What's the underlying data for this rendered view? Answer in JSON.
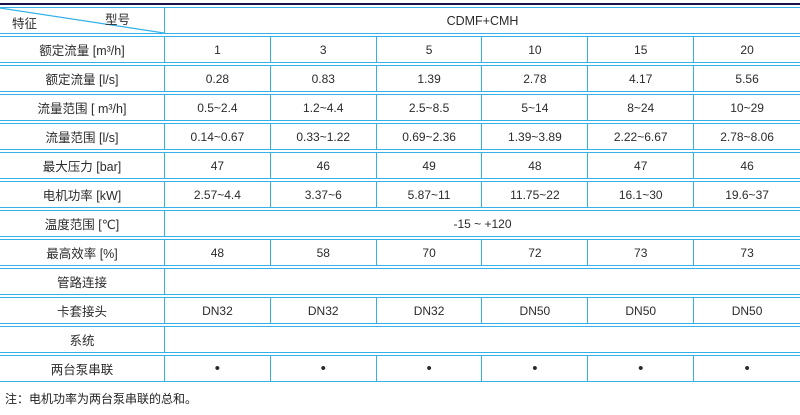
{
  "table": {
    "corner": {
      "top_label": "型号",
      "bottom_label": "特征"
    },
    "series_header": "CDMF+CMH",
    "rows": [
      {
        "label": "额定流量 [m³/h]",
        "values": [
          "1",
          "3",
          "5",
          "10",
          "15",
          "20"
        ]
      },
      {
        "label": "额定流量 [l/s]",
        "values": [
          "0.28",
          "0.83",
          "1.39",
          "2.78",
          "4.17",
          "5.56"
        ]
      },
      {
        "label": "流量范围 [ m³/h]",
        "values": [
          "0.5~2.4",
          "1.2~4.4",
          "2.5~8.5",
          "5~14",
          "8~24",
          "10~29"
        ]
      },
      {
        "label": "流量范围 [l/s]",
        "values": [
          "0.14~0.67",
          "0.33~1.22",
          "0.69~2.36",
          "1.39~3.89",
          "2.22~6.67",
          "2.78~8.06"
        ]
      },
      {
        "label": "最大压力 [bar]",
        "values": [
          "47",
          "46",
          "49",
          "48",
          "47",
          "46"
        ]
      },
      {
        "label": "电机功率 [kW]",
        "values": [
          "2.57~4.4",
          "3.37~6",
          "5.87~11",
          "11.75~22",
          "16.1~30",
          "19.6~37"
        ]
      },
      {
        "label": "温度范围 [℃]",
        "span_value": "-15 ~ +120"
      },
      {
        "label": "最高效率 [%]",
        "values": [
          "48",
          "58",
          "70",
          "72",
          "73",
          "73"
        ]
      },
      {
        "label": "管路连接",
        "span_value": ""
      },
      {
        "label": "卡套接头",
        "values": [
          "DN32",
          "DN32",
          "DN32",
          "DN50",
          "DN50",
          "DN50"
        ]
      },
      {
        "label": "系统",
        "span_value": ""
      },
      {
        "label": "两台泵串联",
        "values": [
          "•",
          "•",
          "•",
          "•",
          "•",
          "•"
        ],
        "bullets": true
      }
    ],
    "note": "注：电机功率为两台泵串联的总和。"
  },
  "colors": {
    "border": "#33b1e8",
    "top_rule": "#14144a",
    "text": "#2b2b2b"
  }
}
